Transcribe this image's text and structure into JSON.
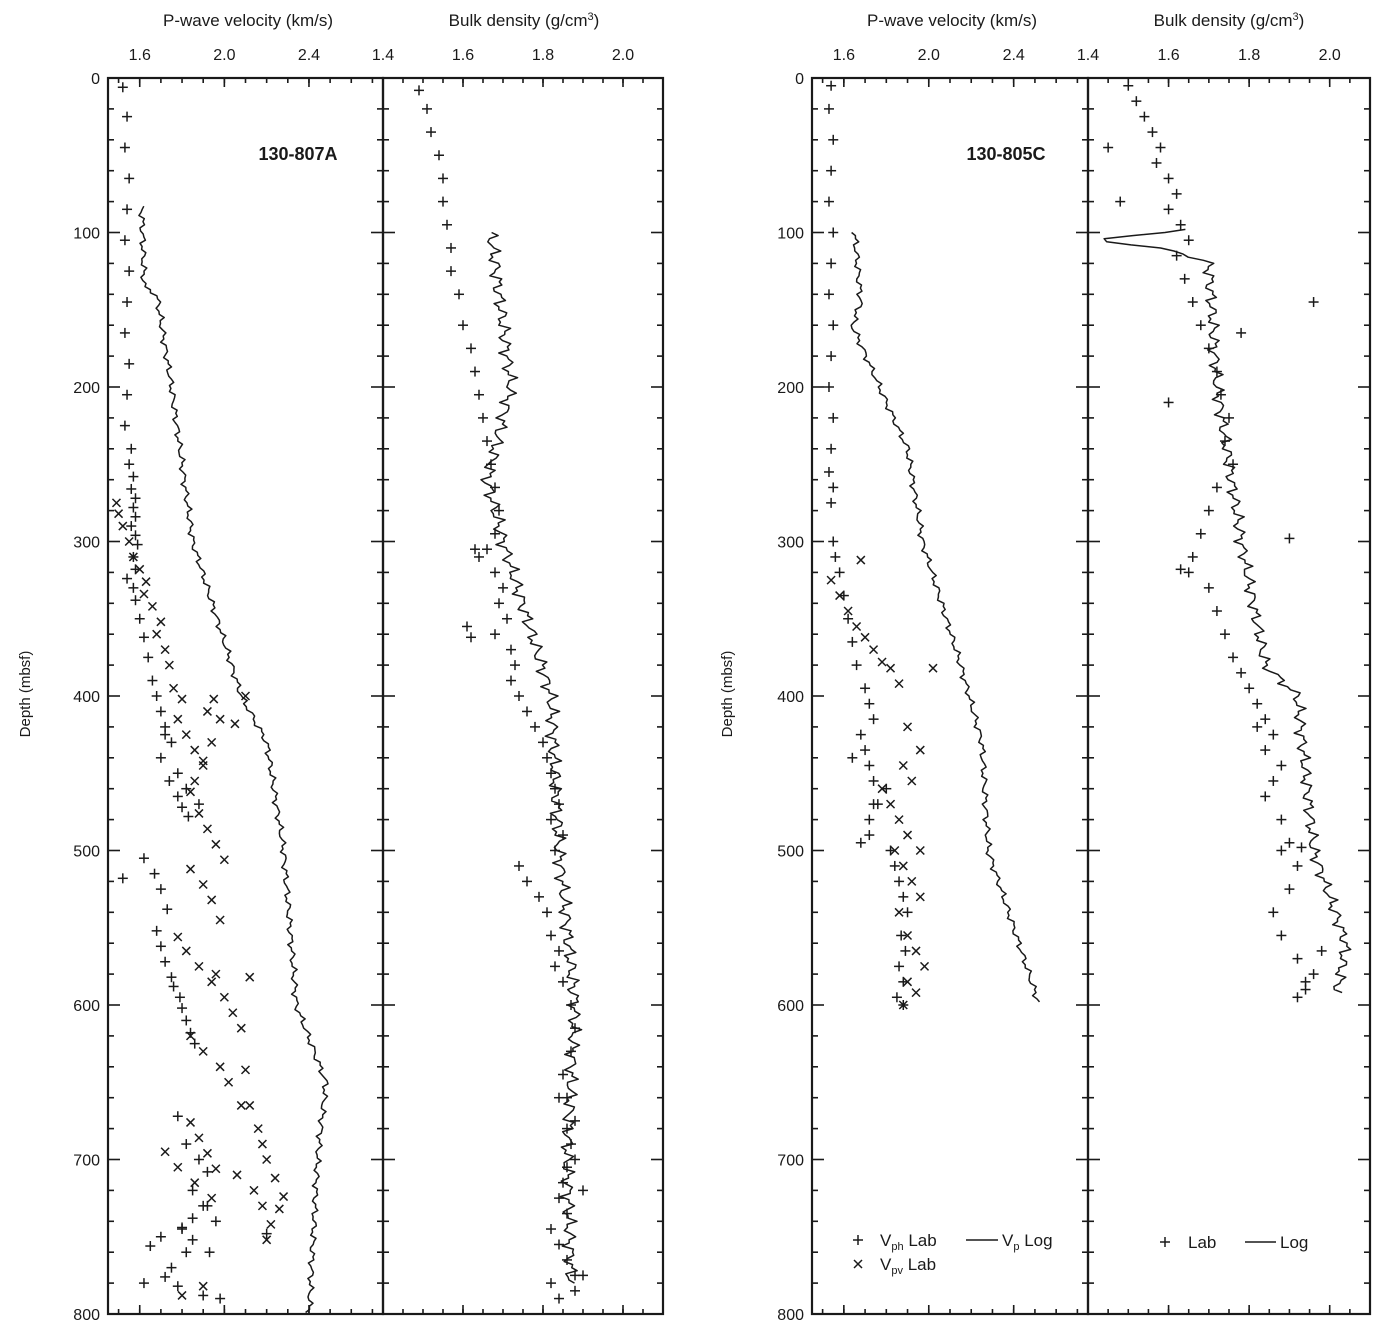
{
  "figure": {
    "panel_titles": {
      "velocity": "P-wave velocity (km/s)",
      "density_prefix": "Bulk density (g/cm",
      "density_sup": "3",
      "density_suffix": ")"
    },
    "depth_label": "Depth (mbsf)",
    "sites": [
      "130-807A",
      "130-805C"
    ],
    "legend": {
      "vph_prefix": "V",
      "vph_sub": "ph",
      "vph_suffix": " Lab",
      "vpv_prefix": "V",
      "vpv_sub": "pv",
      "vpv_suffix": " Lab",
      "vplog_prefix": "V",
      "vplog_sub": "p",
      "vplog_suffix": " Log",
      "density_lab": "Lab",
      "density_log": "Log"
    },
    "colors": {
      "ink": "#1a1a1a",
      "background": "#ffffff"
    }
  },
  "chart_data": [
    {
      "type": "scatter",
      "panel": "130-807A P-wave velocity",
      "site": "130-807A",
      "xlabel": "P-wave velocity (km/s)",
      "ylabel": "Depth (mbsf)",
      "xlim": [
        1.45,
        2.75
      ],
      "ylim": [
        800,
        0
      ],
      "xticks": [
        "1.6",
        "2.0",
        "2.4"
      ],
      "yticks": [
        "0",
        "100",
        "200",
        "300",
        "400",
        "500",
        "600",
        "700",
        "800"
      ],
      "series": [
        {
          "name": "Vph Lab",
          "marker": "plus",
          "x": [
            1.52,
            1.54,
            1.53,
            1.55,
            1.54,
            1.53,
            1.55,
            1.54,
            1.53,
            1.55,
            1.54,
            1.53,
            1.56,
            1.55,
            1.57,
            1.56,
            1.58,
            1.57,
            1.58,
            1.56,
            1.58,
            1.59,
            1.57,
            1.58,
            1.54,
            1.57,
            1.58,
            1.6,
            1.62,
            1.64,
            1.66,
            1.68,
            1.7,
            1.72,
            1.7,
            1.74,
            1.78,
            1.8,
            1.83,
            1.72,
            1.75,
            1.78,
            1.82,
            1.88,
            1.62,
            1.67,
            1.7,
            1.73,
            1.52,
            1.68,
            1.7,
            1.72,
            1.75,
            1.76,
            1.79,
            1.8,
            1.82,
            1.84,
            1.86,
            1.78,
            1.82,
            1.88,
            1.92,
            1.85,
            1.9,
            1.96,
            1.8,
            1.85,
            1.93,
            1.65,
            1.7,
            1.8,
            1.85,
            1.92,
            1.72,
            1.78,
            1.9,
            1.98,
            1.62,
            1.75,
            1.82,
            2.2
          ],
          "y": [
            6,
            25,
            45,
            65,
            85,
            105,
            125,
            145,
            165,
            185,
            205,
            225,
            240,
            250,
            258,
            266,
            272,
            278,
            284,
            290,
            296,
            302,
            310,
            318,
            324,
            330,
            338,
            350,
            362,
            375,
            390,
            400,
            410,
            425,
            440,
            455,
            465,
            472,
            478,
            420,
            430,
            450,
            460,
            470,
            505,
            515,
            525,
            538,
            518,
            552,
            562,
            572,
            582,
            588,
            595,
            602,
            610,
            618,
            625,
            672,
            690,
            700,
            708,
            720,
            730,
            740,
            745,
            752,
            760,
            756,
            750,
            744,
            738,
            730,
            776,
            782,
            788,
            790,
            780,
            770,
            760,
            748
          ]
        },
        {
          "name": "Vpv Lab",
          "marker": "cross",
          "x": [
            1.49,
            1.5,
            1.52,
            1.55,
            1.57,
            1.6,
            1.63,
            1.62,
            1.66,
            1.7,
            1.68,
            1.72,
            1.74,
            1.76,
            1.8,
            1.78,
            1.82,
            1.86,
            1.9,
            1.92,
            1.95,
            1.98,
            1.94,
            1.9,
            1.86,
            1.84,
            2.05,
            2.1,
            1.88,
            1.92,
            1.96,
            2.0,
            1.84,
            1.9,
            1.94,
            1.98,
            1.78,
            1.82,
            1.88,
            1.94,
            2.0,
            2.04,
            2.08,
            1.96,
            2.12,
            1.84,
            1.9,
            1.98,
            2.02,
            2.1,
            2.12,
            2.16,
            2.18,
            2.2,
            2.24,
            2.28,
            2.26,
            2.22,
            2.2,
            2.18,
            2.14,
            2.06,
            1.96,
            1.92,
            1.88,
            1.84,
            2.08,
            1.72,
            1.78,
            1.86,
            1.94,
            1.8,
            1.9
          ],
          "y": [
            275,
            282,
            290,
            300,
            310,
            318,
            326,
            334,
            342,
            352,
            360,
            370,
            380,
            395,
            402,
            415,
            425,
            435,
            442,
            410,
            402,
            415,
            430,
            445,
            455,
            462,
            418,
            400,
            476,
            486,
            496,
            506,
            512,
            522,
            532,
            545,
            556,
            565,
            575,
            585,
            595,
            605,
            615,
            580,
            582,
            620,
            630,
            640,
            650,
            642,
            665,
            680,
            690,
            700,
            712,
            724,
            732,
            742,
            752,
            730,
            720,
            710,
            706,
            696,
            686,
            676,
            665,
            695,
            705,
            715,
            725,
            788,
            782
          ]
        }
      ]
    },
    {
      "type": "scatter",
      "panel": "130-807A bulk density",
      "site": "130-807A",
      "xlabel": "Bulk density (g/cm3)",
      "ylabel": "Depth (mbsf)",
      "xlim": [
        1.4,
        2.1
      ],
      "ylim": [
        800,
        0
      ],
      "xticks": [
        "1.4",
        "1.6",
        "1.8",
        "2.0"
      ],
      "yticks": [
        "0",
        "100",
        "200",
        "300",
        "400",
        "500",
        "600",
        "700",
        "800"
      ],
      "series": [
        {
          "name": "Lab",
          "marker": "plus",
          "x": [
            1.49,
            1.51,
            1.52,
            1.54,
            1.55,
            1.55,
            1.56,
            1.57,
            1.57,
            1.59,
            1.6,
            1.62,
            1.63,
            1.64,
            1.65,
            1.66,
            1.67,
            1.68,
            1.69,
            1.68,
            1.66,
            1.64,
            1.68,
            1.7,
            1.69,
            1.71,
            1.68,
            1.72,
            1.73,
            1.72,
            1.74,
            1.61,
            1.62,
            1.63,
            1.76,
            1.78,
            1.8,
            1.81,
            1.82,
            1.83,
            1.84,
            1.82,
            1.85,
            1.83,
            1.74,
            1.76,
            1.79,
            1.81,
            1.82,
            1.84,
            1.83,
            1.85,
            1.87,
            1.88,
            1.87,
            1.85,
            1.86,
            1.88,
            1.87,
            1.86,
            1.85,
            1.84,
            1.86,
            1.82,
            1.84,
            1.86,
            1.88,
            1.9,
            1.88,
            1.86,
            1.84,
            1.82,
            1.84,
            1.88,
            1.9
          ],
          "y": [
            8,
            20,
            35,
            50,
            65,
            80,
            95,
            110,
            125,
            140,
            160,
            175,
            190,
            205,
            220,
            235,
            250,
            265,
            280,
            295,
            305,
            310,
            320,
            330,
            340,
            350,
            360,
            370,
            380,
            390,
            400,
            355,
            362,
            305,
            410,
            420,
            430,
            440,
            450,
            460,
            470,
            480,
            490,
            500,
            510,
            520,
            530,
            540,
            555,
            565,
            575,
            585,
            600,
            615,
            630,
            645,
            660,
            675,
            690,
            705,
            715,
            725,
            735,
            745,
            755,
            765,
            775,
            720,
            700,
            680,
            660,
            780,
            790,
            785,
            775
          ]
        }
      ]
    },
    {
      "type": "scatter",
      "panel": "130-805C P-wave velocity",
      "site": "130-805C",
      "xlabel": "P-wave velocity (km/s)",
      "ylabel": "Depth (mbsf)",
      "xlim": [
        1.45,
        2.75
      ],
      "ylim": [
        800,
        0
      ],
      "xticks": [
        "1.6",
        "2.0",
        "2.4"
      ],
      "yticks": [
        "0",
        "100",
        "200",
        "300",
        "400",
        "500",
        "600",
        "700",
        "800"
      ],
      "series": [
        {
          "name": "Vph Lab",
          "marker": "plus",
          "x": [
            1.54,
            1.53,
            1.55,
            1.54,
            1.53,
            1.55,
            1.54,
            1.53,
            1.55,
            1.54,
            1.53,
            1.55,
            1.54,
            1.53,
            1.55,
            1.54,
            1.55,
            1.56,
            1.58,
            1.6,
            1.62,
            1.64,
            1.66,
            1.7,
            1.72,
            1.74,
            1.68,
            1.7,
            1.72,
            1.74,
            1.76,
            1.64,
            1.72,
            1.68,
            1.72,
            1.74,
            1.8,
            1.82,
            1.84,
            1.86,
            1.88,
            1.9,
            1.87,
            1.89,
            1.86,
            1.88,
            1.85,
            1.88
          ],
          "y": [
            5,
            20,
            40,
            60,
            80,
            100,
            120,
            140,
            160,
            180,
            200,
            220,
            240,
            255,
            265,
            275,
            300,
            310,
            320,
            335,
            350,
            365,
            380,
            395,
            405,
            415,
            425,
            435,
            445,
            455,
            470,
            440,
            480,
            495,
            490,
            470,
            460,
            500,
            510,
            520,
            530,
            540,
            555,
            565,
            575,
            585,
            595,
            600
          ]
        },
        {
          "name": "Vpv Lab",
          "marker": "cross",
          "x": [
            1.54,
            1.58,
            1.62,
            1.66,
            1.7,
            1.74,
            1.78,
            1.82,
            1.86,
            1.9,
            1.96,
            2.02,
            1.88,
            1.92,
            1.78,
            1.82,
            1.86,
            1.9,
            1.84,
            1.88,
            1.92,
            1.96,
            1.86,
            1.9,
            1.94,
            1.98,
            1.9,
            1.94,
            1.88,
            1.96,
            1.68
          ],
          "y": [
            325,
            335,
            345,
            355,
            362,
            370,
            378,
            382,
            392,
            420,
            435,
            382,
            445,
            455,
            460,
            470,
            480,
            490,
            500,
            510,
            520,
            530,
            540,
            555,
            565,
            575,
            585,
            592,
            600,
            500,
            312
          ]
        }
      ]
    },
    {
      "type": "scatter",
      "panel": "130-805C bulk density",
      "site": "130-805C",
      "xlabel": "Bulk density (g/cm3)",
      "ylabel": "Depth (mbsf)",
      "xlim": [
        1.4,
        2.1
      ],
      "ylim": [
        800,
        0
      ],
      "xticks": [
        "1.4",
        "1.6",
        "1.8",
        "2.0"
      ],
      "yticks": [
        "0",
        "100",
        "200",
        "300",
        "400",
        "500",
        "600",
        "700",
        "800"
      ],
      "series": [
        {
          "name": "Lab",
          "marker": "plus",
          "x": [
            1.5,
            1.52,
            1.54,
            1.56,
            1.58,
            1.57,
            1.6,
            1.62,
            1.6,
            1.63,
            1.65,
            1.45,
            1.48,
            1.62,
            1.64,
            1.66,
            1.68,
            1.7,
            1.72,
            1.73,
            1.75,
            1.74,
            1.76,
            1.72,
            1.7,
            1.68,
            1.66,
            1.65,
            1.7,
            1.72,
            1.74,
            1.76,
            1.78,
            1.8,
            1.82,
            1.84,
            1.86,
            1.84,
            1.88,
            1.86,
            1.84,
            1.88,
            1.9,
            1.92,
            1.9,
            1.86,
            1.88,
            1.92,
            1.94,
            1.92,
            1.96,
            1.98,
            1.94,
            1.9,
            1.96,
            1.88,
            1.93,
            1.6,
            1.63,
            1.82,
            1.78
          ],
          "y": [
            5,
            15,
            25,
            35,
            45,
            55,
            65,
            75,
            85,
            95,
            105,
            45,
            80,
            115,
            130,
            145,
            160,
            175,
            190,
            205,
            220,
            235,
            250,
            265,
            280,
            295,
            310,
            320,
            330,
            345,
            360,
            375,
            385,
            395,
            405,
            415,
            425,
            435,
            445,
            455,
            465,
            480,
            495,
            510,
            525,
            540,
            555,
            570,
            585,
            595,
            580,
            565,
            590,
            298,
            145,
            500,
            498,
            210,
            318,
            420,
            165
          ]
        }
      ]
    }
  ]
}
